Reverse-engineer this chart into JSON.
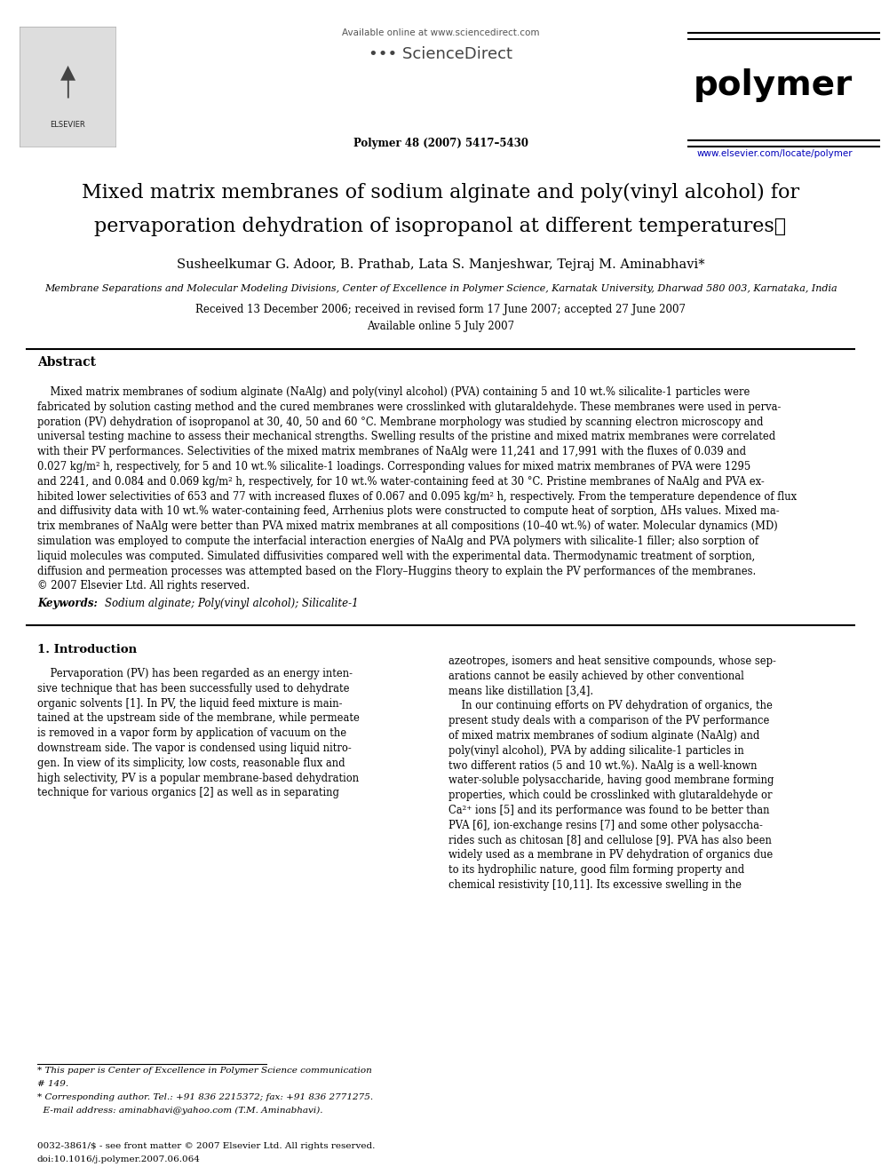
{
  "page_bg": "#ffffff",
  "header": {
    "available_text": "Available online at www.sciencedirect.com",
    "sciencedirect_text": "••• ScienceDirect",
    "journal_name": "polymer",
    "journal_info": "Polymer 48 (2007) 5417–5430",
    "url": "www.elsevier.com/locate/polymer"
  },
  "title_line1": "Mixed matrix membranes of sodium alginate and poly(vinyl alcohol) for",
  "title_line2": "pervaporation dehydration of isopropanol at different temperatures⋆",
  "authors": "Susheelkumar G. Adoor, B. Prathab, Lata S. Manjeshwar, Tejraj M. Aminabhavi*",
  "affiliation": "Membrane Separations and Molecular Modeling Divisions, Center of Excellence in Polymer Science, Karnatak University, Dharwad 580 003, Karnataka, India",
  "received": "Received 13 December 2006; received in revised form 17 June 2007; accepted 27 June 2007",
  "available_online": "Available online 5 July 2007",
  "abstract_heading": "Abstract",
  "abstract_indent": "    Mixed matrix membranes of sodium alginate (NaAlg) and poly(vinyl alcohol) (PVA) containing 5 and 10 wt.% silicalite-1 particles were\nfabricated by solution casting method and the cured membranes were crosslinked with glutaraldehyde. These membranes were used in perva-\nporation (PV) dehydration of isopropanol at 30, 40, 50 and 60 °C. Membrane morphology was studied by scanning electron microscopy and\nuniversal testing machine to assess their mechanical strengths. Swelling results of the pristine and mixed matrix membranes were correlated\nwith their PV performances. Selectivities of the mixed matrix membranes of NaAlg were 11,241 and 17,991 with the fluxes of 0.039 and\n0.027 kg/m² h, respectively, for 5 and 10 wt.% silicalite-1 loadings. Corresponding values for mixed matrix membranes of PVA were 1295\nand 2241, and 0.084 and 0.069 kg/m² h, respectively, for 10 wt.% water-containing feed at 30 °C. Pristine membranes of NaAlg and PVA ex-\nhibited lower selectivities of 653 and 77 with increased fluxes of 0.067 and 0.095 kg/m² h, respectively. From the temperature dependence of flux\nand diffusivity data with 10 wt.% water-containing feed, Arrhenius plots were constructed to compute heat of sorption, ΔHs values. Mixed ma-\ntrix membranes of NaAlg were better than PVA mixed matrix membranes at all compositions (10–40 wt.%) of water. Molecular dynamics (MD)\nsimulation was employed to compute the interfacial interaction energies of NaAlg and PVA polymers with silicalite-1 filler; also sorption of\nliquid molecules was computed. Simulated diffusivities compared well with the experimental data. Thermodynamic treatment of sorption,\ndiffusion and permeation processes was attempted based on the Flory–Huggins theory to explain the PV performances of the membranes.\n© 2007 Elsevier Ltd. All rights reserved.",
  "keywords_label": "Keywords: ",
  "keywords_text": "Sodium alginate; Poly(vinyl alcohol); Silicalite-1",
  "section1_heading": "1. Introduction",
  "intro_col1_para": "    Pervaporation (PV) has been regarded as an energy inten-\nsive technique that has been successfully used to dehydrate\norganic solvents [1]. In PV, the liquid feed mixture is main-\ntained at the upstream side of the membrane, while permeate\nis removed in a vapor form by application of vacuum on the\ndownstream side. The vapor is condensed using liquid nitro-\ngen. In view of its simplicity, low costs, reasonable flux and\nhigh selectivity, PV is a popular membrane-based dehydration\ntechnique for various organics [2] as well as in separating",
  "intro_col2_para": "azeotropes, isomers and heat sensitive compounds, whose sep-\narations cannot be easily achieved by other conventional\nmeans like distillation [3,4].\n    In our continuing efforts on PV dehydration of organics, the\npresent study deals with a comparison of the PV performance\nof mixed matrix membranes of sodium alginate (NaAlg) and\npoly(vinyl alcohol), PVA by adding silicalite-1 particles in\ntwo different ratios (5 and 10 wt.%). NaAlg is a well-known\nwater-soluble polysaccharide, having good membrane forming\nproperties, which could be crosslinked with glutaraldehyde or\nCa²⁺ ions [5] and its performance was found to be better than\nPVA [6], ion-exchange resins [7] and some other polysaccha-\nrides such as chitosan [8] and cellulose [9]. PVA has also been\nwidely used as a membrane in PV dehydration of organics due\nto its hydrophilic nature, good film forming property and\nchemical resistivity [10,11]. Its excessive swelling in the",
  "footnote1": "* This paper is Center of Excellence in Polymer Science communication",
  "footnote1b": "# 149.",
  "footnote2": "* Corresponding author. Tel.: +91 836 2215372; fax: +91 836 2771275.",
  "footnote3": "  E-mail address: aminabhavi@yahoo.com (T.M. Aminabhavi).",
  "footer_issn": "0032-3861/$ - see front matter © 2007 Elsevier Ltd. All rights reserved.",
  "footer_doi": "doi:10.1016/j.polymer.2007.06.064"
}
